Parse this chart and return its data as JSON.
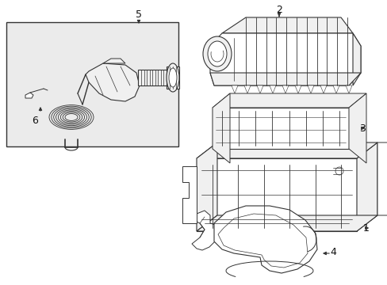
{
  "bg": "#ffffff",
  "lc": "#333333",
  "fill_white": "#ffffff",
  "fill_light": "#f0f0f0",
  "box_bg": "#ebebeb",
  "figsize": [
    4.89,
    3.6
  ],
  "dpi": 100
}
